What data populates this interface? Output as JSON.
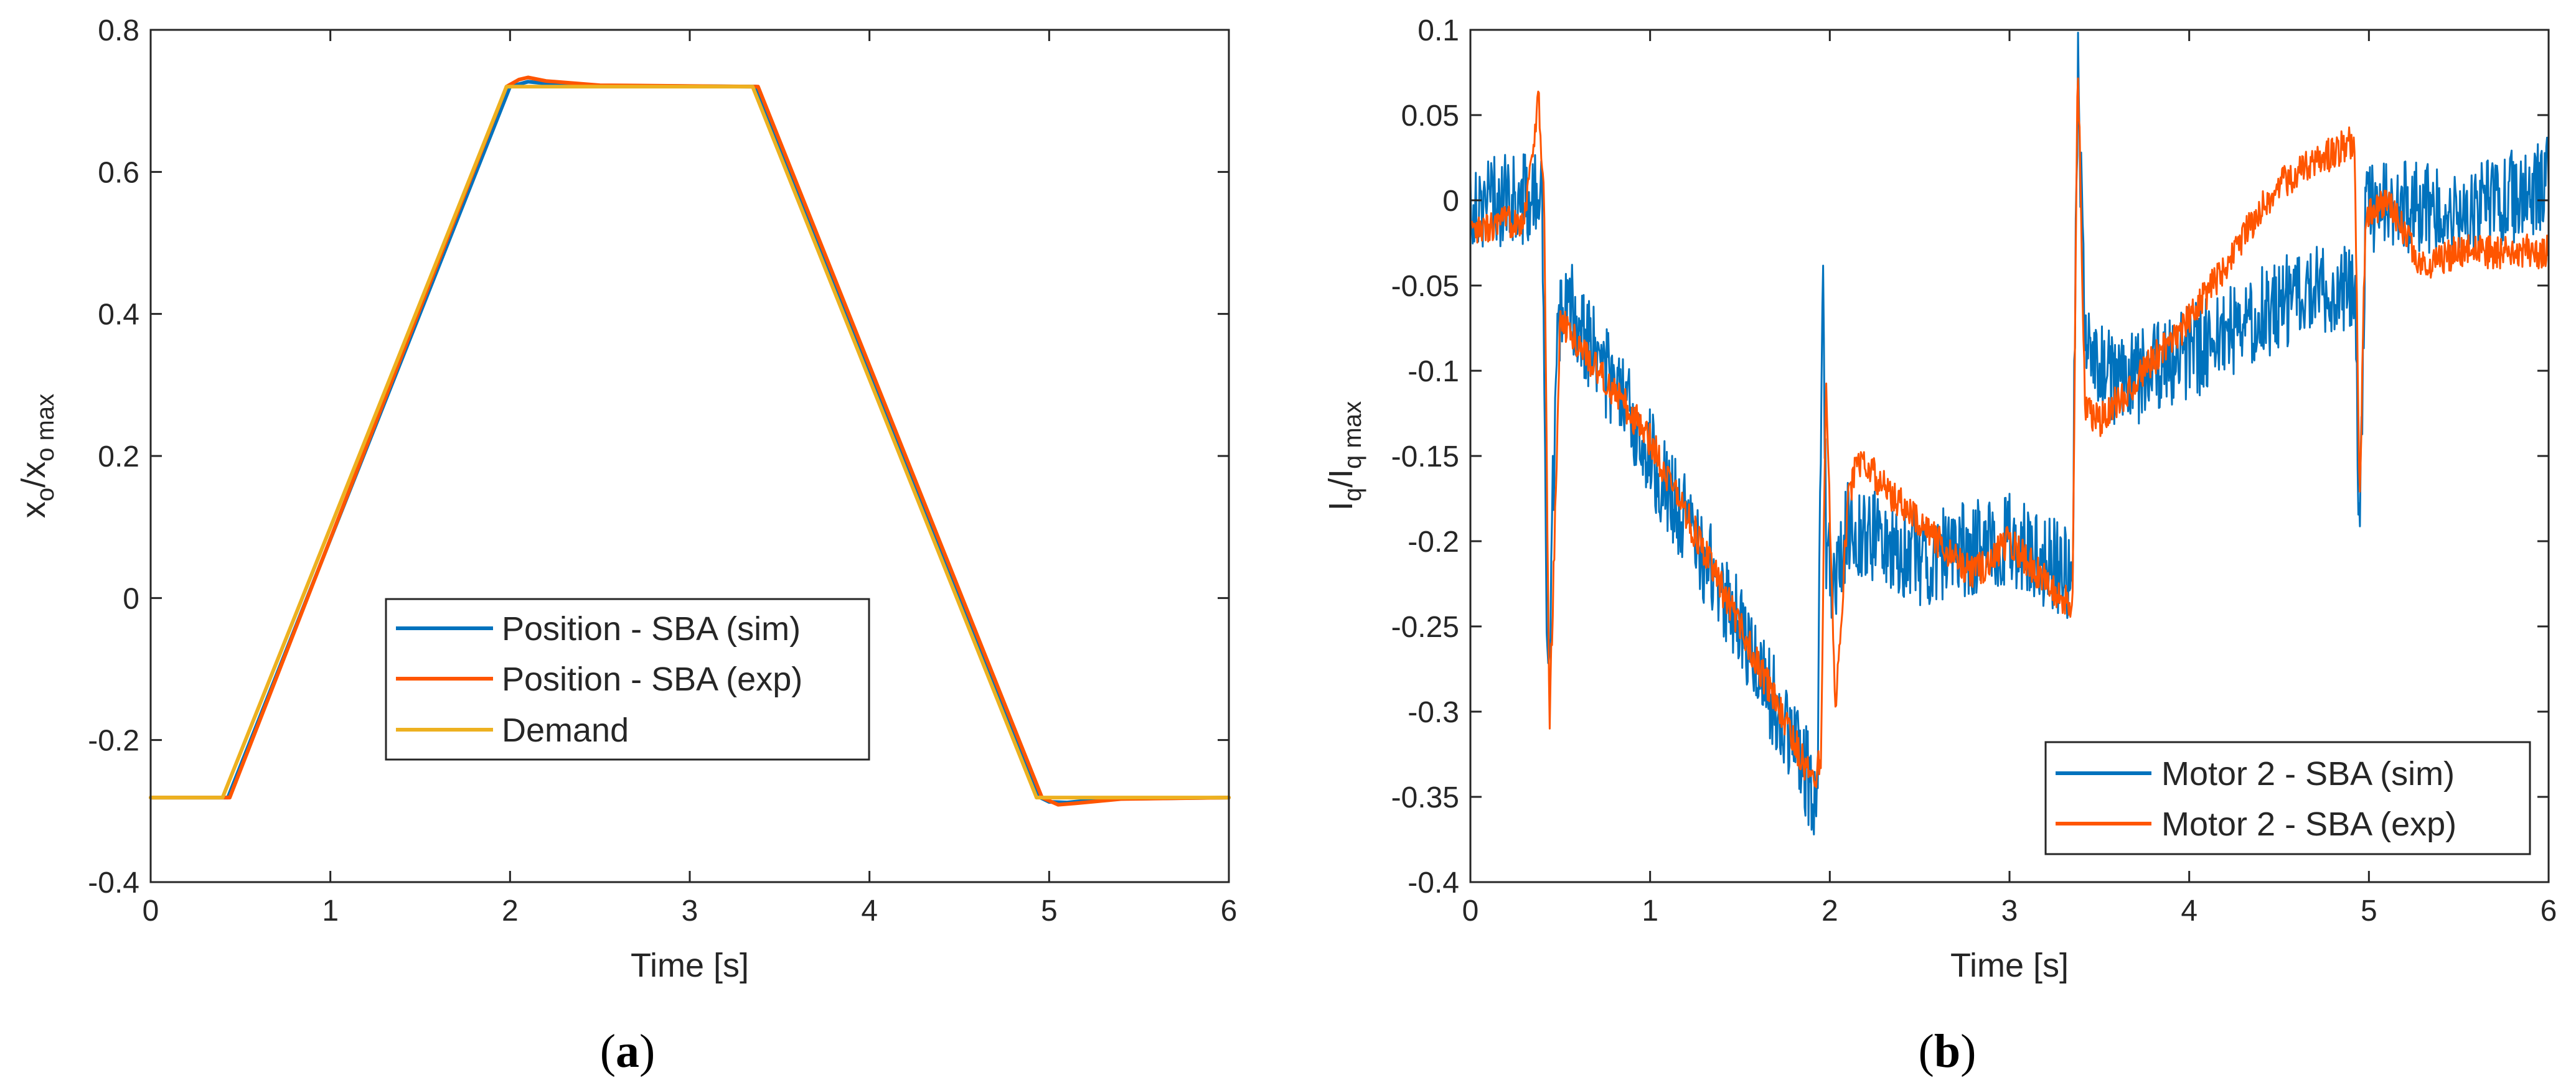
{
  "colors": {
    "sim": "#0072BD",
    "exp": "#FF5500",
    "demand": "#EDB120",
    "axis": "#262626"
  },
  "chart_data": [
    {
      "type": "line",
      "panel": "a",
      "caption_open": "(",
      "caption_letter": "a",
      "caption_close": ")",
      "xlabel": "Time [s]",
      "ylabel_parts": [
        "x",
        "o",
        "/x",
        "o max"
      ],
      "xlim": [
        0,
        6
      ],
      "ylim": [
        -0.4,
        0.8
      ],
      "xticks": [
        0,
        1,
        2,
        3,
        4,
        5,
        6
      ],
      "xtick_labels": [
        "0",
        "1",
        "2",
        "3",
        "4",
        "5",
        "6"
      ],
      "yticks": [
        -0.4,
        -0.2,
        0,
        0.2,
        0.4,
        0.6,
        0.8
      ],
      "ytick_labels": [
        "-0.4",
        "-0.2",
        "0",
        "0.2",
        "0.4",
        "0.6",
        "0.8"
      ],
      "legend_position": "center",
      "series": [
        {
          "name": "Position - SBA (sim)",
          "color_key": "sim",
          "x": [
            0,
            0.43,
            2.0,
            2.1,
            2.3,
            3.37,
            4.95,
            5.0,
            5.1,
            5.3,
            6.0
          ],
          "y": [
            -0.281,
            -0.281,
            0.72,
            0.727,
            0.722,
            0.72,
            -0.281,
            -0.287,
            -0.288,
            -0.283,
            -0.281
          ]
        },
        {
          "name": "Position - SBA (exp)",
          "color_key": "exp",
          "x": [
            0,
            0.44,
            1.98,
            2.05,
            2.1,
            2.2,
            2.5,
            3.38,
            4.96,
            5.05,
            5.15,
            5.4,
            6.0
          ],
          "y": [
            -0.281,
            -0.281,
            0.72,
            0.73,
            0.733,
            0.728,
            0.722,
            0.72,
            -0.281,
            -0.291,
            -0.289,
            -0.283,
            -0.281
          ]
        },
        {
          "name": "Demand",
          "color_key": "demand",
          "x": [
            0,
            0.4,
            1.98,
            3.35,
            4.93,
            6.0
          ],
          "y": [
            -0.281,
            -0.281,
            0.72,
            0.72,
            -0.281,
            -0.281
          ]
        }
      ]
    },
    {
      "type": "line",
      "panel": "b",
      "caption_open": "(",
      "caption_letter": "b",
      "caption_close": ")",
      "xlabel": "Time [s]",
      "ylabel_parts": [
        "I",
        "q",
        "/I",
        "q max"
      ],
      "xlim": [
        0,
        6
      ],
      "ylim": [
        -0.4,
        0.1
      ],
      "xticks": [
        0,
        1,
        2,
        3,
        4,
        5,
        6
      ],
      "xtick_labels": [
        "0",
        "1",
        "2",
        "3",
        "4",
        "5",
        "6"
      ],
      "yticks": [
        -0.4,
        -0.35,
        -0.3,
        -0.25,
        -0.2,
        -0.15,
        -0.1,
        -0.05,
        0,
        0.05,
        0.1
      ],
      "ytick_labels": [
        "-0.4",
        "-0.35",
        "-0.3",
        "-0.25",
        "-0.2",
        "-0.15",
        "-0.1",
        "-0.05",
        "0",
        "0.05",
        "0.1"
      ],
      "legend_position": "bottom-right",
      "series": [
        {
          "name": "Motor 2 - SBA (sim)",
          "color_key": "sim",
          "noise": 0.028,
          "x": [
            0,
            0.3,
            0.4,
            0.43,
            0.48,
            0.55,
            1.0,
            1.5,
            1.93,
            1.96,
            1.98,
            2.02,
            2.1,
            2.5,
            3.0,
            3.35,
            3.38,
            3.42,
            3.6,
            4.0,
            4.5,
            4.92,
            4.95,
            4.98,
            5.1,
            5.5,
            6.0
          ],
          "y": [
            0.0,
            0.0,
            0.0,
            -0.3,
            -0.08,
            -0.06,
            -0.15,
            -0.25,
            -0.35,
            -0.04,
            -0.2,
            -0.23,
            -0.19,
            -0.21,
            -0.2,
            -0.22,
            0.08,
            -0.08,
            -0.11,
            -0.09,
            -0.06,
            -0.05,
            -0.2,
            -0.01,
            0.0,
            -0.01,
            0.01
          ]
        },
        {
          "name": "Motor 2 - SBA (exp)",
          "color_key": "exp",
          "noise": 0.01,
          "x": [
            0,
            0.3,
            0.38,
            0.41,
            0.44,
            0.5,
            1.0,
            1.5,
            1.9,
            1.95,
            1.98,
            2.03,
            2.1,
            2.15,
            2.5,
            2.8,
            3.0,
            3.35,
            3.38,
            3.42,
            3.5,
            4.0,
            4.5,
            4.92,
            4.95,
            4.98,
            5.1,
            5.3,
            5.5,
            6.0
          ],
          "y": [
            -0.02,
            -0.01,
            0.06,
            0.0,
            -0.31,
            -0.07,
            -0.14,
            -0.25,
            -0.34,
            -0.33,
            -0.1,
            -0.3,
            -0.18,
            -0.15,
            -0.19,
            -0.22,
            -0.2,
            -0.24,
            0.085,
            -0.12,
            -0.13,
            -0.07,
            0.01,
            0.035,
            -0.18,
            -0.01,
            0.0,
            -0.04,
            -0.03,
            -0.03
          ]
        }
      ]
    }
  ]
}
